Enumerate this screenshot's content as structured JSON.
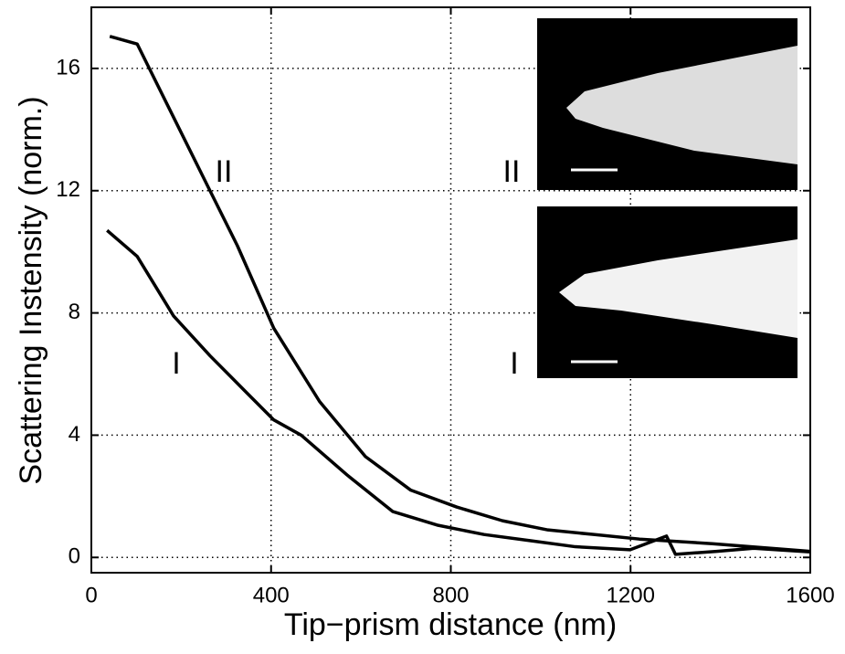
{
  "chart_data": {
    "type": "line",
    "xlabel": "Tip−prism distance (nm)",
    "ylabel": "Scattering Instensity (norm.)",
    "xlim": [
      0,
      1600
    ],
    "xticks": [
      0,
      400,
      800,
      1200,
      1600
    ],
    "ylim": [
      -0.5,
      18
    ],
    "yticks": [
      0,
      4,
      8,
      12,
      16
    ],
    "grid": true,
    "series": [
      {
        "name": "II",
        "color": "#000000",
        "x": [
          41,
          102,
          183,
          264,
          325,
          406,
          508,
          610,
          711,
          813,
          915,
          1016,
          1118,
          1220,
          1382,
          1600
        ],
        "values": [
          17.05,
          16.8,
          14.4,
          12.0,
          10.2,
          7.5,
          5.1,
          3.3,
          2.2,
          1.65,
          1.2,
          0.9,
          0.75,
          0.6,
          0.45,
          0.2
        ]
      },
      {
        "name": "I",
        "color": "#000000",
        "x": [
          35,
          102,
          183,
          264,
          345,
          406,
          467,
          569,
          671,
          772,
          874,
          976,
          1077,
          1199,
          1280,
          1300,
          1392,
          1474,
          1600
        ],
        "values": [
          10.7,
          9.85,
          7.9,
          6.6,
          5.4,
          4.5,
          4.0,
          2.7,
          1.5,
          1.05,
          0.75,
          0.55,
          0.35,
          0.25,
          0.7,
          0.1,
          0.2,
          0.3,
          0.18
        ]
      }
    ],
    "insets": [
      {
        "label": "II"
      },
      {
        "label": "I"
      }
    ]
  }
}
